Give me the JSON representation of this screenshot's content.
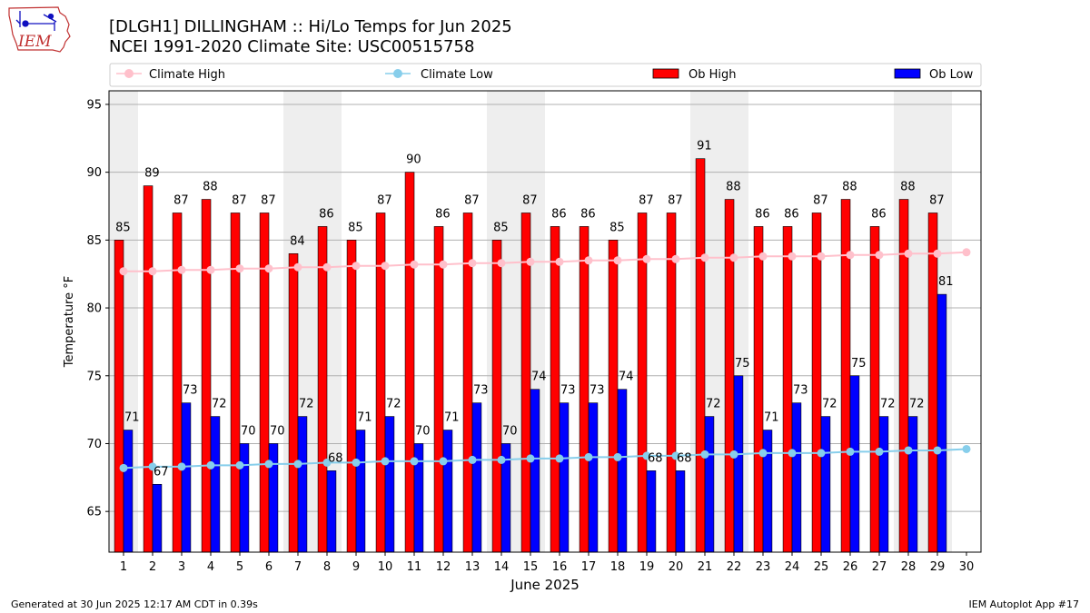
{
  "logo": {
    "text": "IEM"
  },
  "chart_data": {
    "type": "bar",
    "title": "[DLGH1] DILLINGHAM :: Hi/Lo Temps for Jun 2025",
    "subtitle": "NCEI 1991-2020 Climate Site: USC00515758",
    "xlabel": "June 2025",
    "ylabel": "Temperature °F",
    "ylim": [
      62,
      96
    ],
    "yticks": [
      65,
      70,
      75,
      80,
      85,
      90,
      95
    ],
    "grid": true,
    "legend_placement": "top",
    "categories": [
      "1",
      "2",
      "3",
      "4",
      "5",
      "6",
      "7",
      "8",
      "9",
      "10",
      "11",
      "12",
      "13",
      "14",
      "15",
      "16",
      "17",
      "18",
      "19",
      "20",
      "21",
      "22",
      "23",
      "24",
      "25",
      "26",
      "27",
      "28",
      "29",
      "30"
    ],
    "weekend_shading_days": [
      1,
      7,
      8,
      14,
      15,
      21,
      22,
      28,
      29
    ],
    "series": [
      {
        "name": "Ob High",
        "kind": "bar",
        "color": "#ff0000",
        "values": [
          85,
          89,
          87,
          88,
          87,
          87,
          84,
          86,
          85,
          87,
          90,
          86,
          87,
          85,
          87,
          86,
          86,
          85,
          87,
          87,
          91,
          88,
          86,
          86,
          87,
          88,
          86,
          88,
          87,
          null
        ]
      },
      {
        "name": "Ob Low",
        "kind": "bar",
        "color": "#0000ff",
        "values": [
          71,
          67,
          73,
          72,
          70,
          70,
          72,
          68,
          71,
          72,
          70,
          71,
          73,
          70,
          74,
          73,
          73,
          74,
          68,
          68,
          72,
          75,
          71,
          73,
          72,
          75,
          72,
          72,
          81,
          null
        ]
      },
      {
        "name": "Climate High",
        "kind": "line",
        "color": "#ffc0cb",
        "values": [
          82.7,
          82.7,
          82.8,
          82.8,
          82.9,
          82.9,
          83.0,
          83.0,
          83.1,
          83.1,
          83.2,
          83.2,
          83.3,
          83.3,
          83.4,
          83.4,
          83.5,
          83.5,
          83.6,
          83.6,
          83.7,
          83.7,
          83.8,
          83.8,
          83.8,
          83.9,
          83.9,
          84.0,
          84.0,
          84.1
        ]
      },
      {
        "name": "Climate Low",
        "kind": "line",
        "color": "#87ceeb",
        "values": [
          68.2,
          68.3,
          68.3,
          68.4,
          68.4,
          68.5,
          68.5,
          68.6,
          68.6,
          68.7,
          68.7,
          68.7,
          68.8,
          68.8,
          68.9,
          68.9,
          69.0,
          69.0,
          69.1,
          69.1,
          69.2,
          69.2,
          69.3,
          69.3,
          69.3,
          69.4,
          69.4,
          69.5,
          69.5,
          69.6
        ]
      }
    ]
  },
  "footer": {
    "generated": "Generated at 30 Jun 2025 12:17 AM CDT in 0.39s",
    "app": "IEM Autoplot App #17"
  }
}
